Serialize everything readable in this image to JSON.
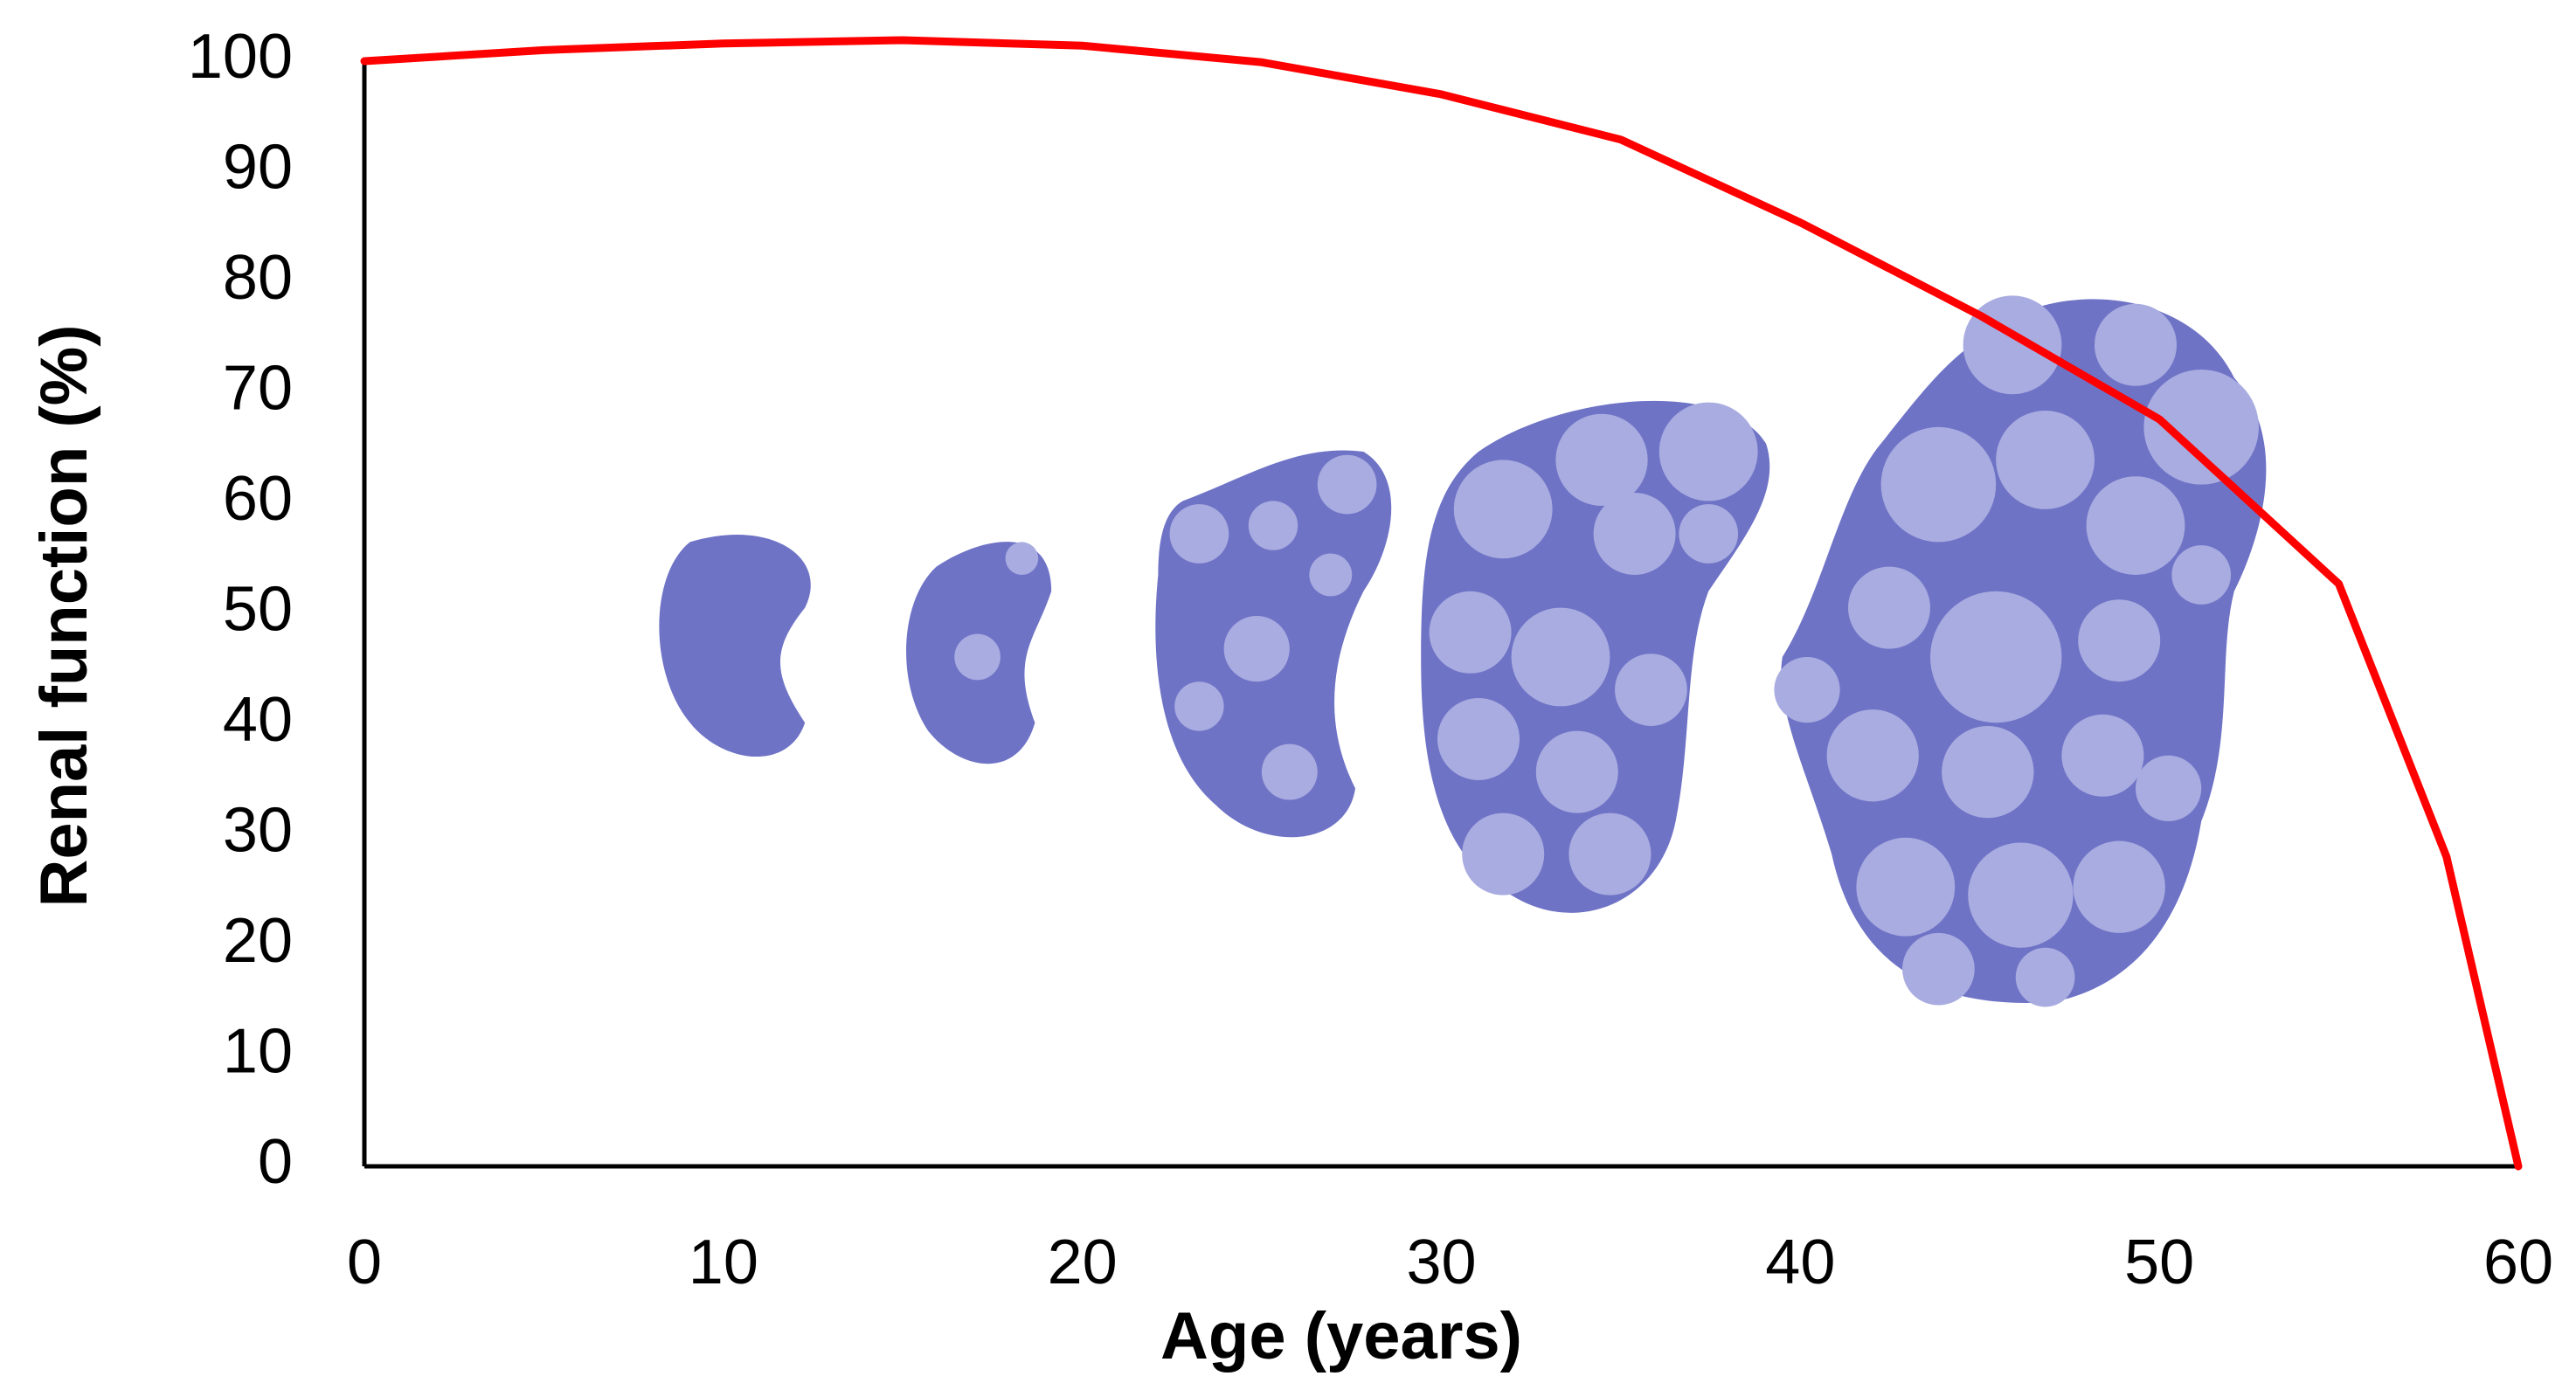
{
  "chart_data": {
    "type": "line",
    "x_label": "Age (years)",
    "y_label": "Renal function (%)",
    "x": [
      0,
      5,
      10,
      15,
      20,
      25,
      30,
      35,
      40,
      45,
      50,
      55,
      58,
      60
    ],
    "values": [
      100,
      101,
      101.6,
      101.9,
      101.4,
      99.9,
      97,
      92.9,
      85.4,
      77,
      67.6,
      52.7,
      28,
      0
    ],
    "color": "#ff0000",
    "xlim": [
      0,
      60
    ],
    "xticks": [
      0,
      10,
      20,
      30,
      40,
      50,
      60
    ],
    "ylim": [
      0,
      100
    ],
    "yticks": [
      0,
      10,
      20,
      30,
      40,
      50,
      60,
      70,
      80,
      90,
      100
    ],
    "grid": false
  }
}
